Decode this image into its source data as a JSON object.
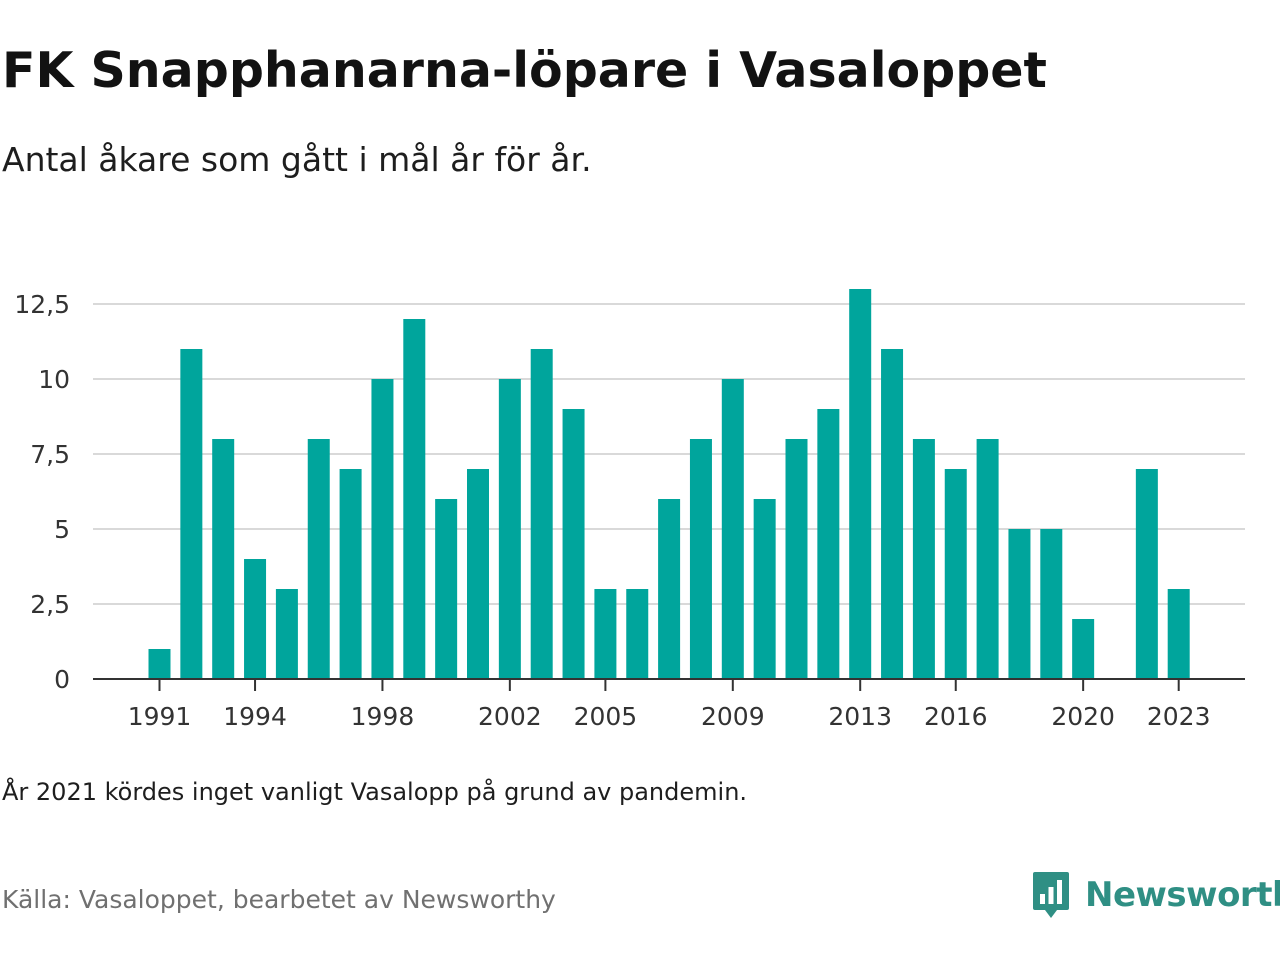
{
  "header": {
    "title": "FK Snapphanarna-löpare i Vasaloppet",
    "subtitle": "Antal åkare som gått i mål år för år."
  },
  "footer": {
    "note": "År 2021 kördes inget vanligt Vasalopp på grund av pandemin.",
    "source": "Källa: Vasaloppet, bearbetet av Newsworthy",
    "brand_name": "Newsworthy",
    "brand_icon": "newsworthy-logo-icon"
  },
  "colors": {
    "bar": "#00a59c",
    "grid": "#d9d9d9",
    "axis": "#333333",
    "brand": "#2f8f84"
  },
  "chart_data": {
    "type": "bar",
    "categories": [
      "1991",
      "1992",
      "1993",
      "1994",
      "1995",
      "1996",
      "1997",
      "1998",
      "1999",
      "2000",
      "2001",
      "2002",
      "2003",
      "2004",
      "2005",
      "2006",
      "2007",
      "2008",
      "2009",
      "2010",
      "2011",
      "2012",
      "2013",
      "2014",
      "2015",
      "2016",
      "2017",
      "2018",
      "2019",
      "2020",
      "2021",
      "2022",
      "2023"
    ],
    "values": [
      1,
      11,
      8,
      4,
      3,
      8,
      7,
      10,
      12,
      6,
      7,
      10,
      11,
      9,
      3,
      3,
      6,
      8,
      10,
      6,
      8,
      9,
      13,
      11,
      8,
      7,
      8,
      5,
      5,
      2,
      null,
      7,
      3
    ],
    "x_tick_labels": [
      "1991",
      "1994",
      "1998",
      "2002",
      "2005",
      "2009",
      "2013",
      "2016",
      "2020",
      "2023"
    ],
    "y_ticks": [
      0,
      2.5,
      5,
      7.5,
      10,
      12.5
    ],
    "y_tick_labels": [
      "0",
      "2,5",
      "5",
      "7,5",
      "10",
      "12,5"
    ],
    "ylim": [
      0,
      13
    ],
    "grid": true,
    "legend": "none",
    "title": "FK Snapphanarna-löpare i Vasaloppet",
    "xlabel": "",
    "ylabel": ""
  }
}
